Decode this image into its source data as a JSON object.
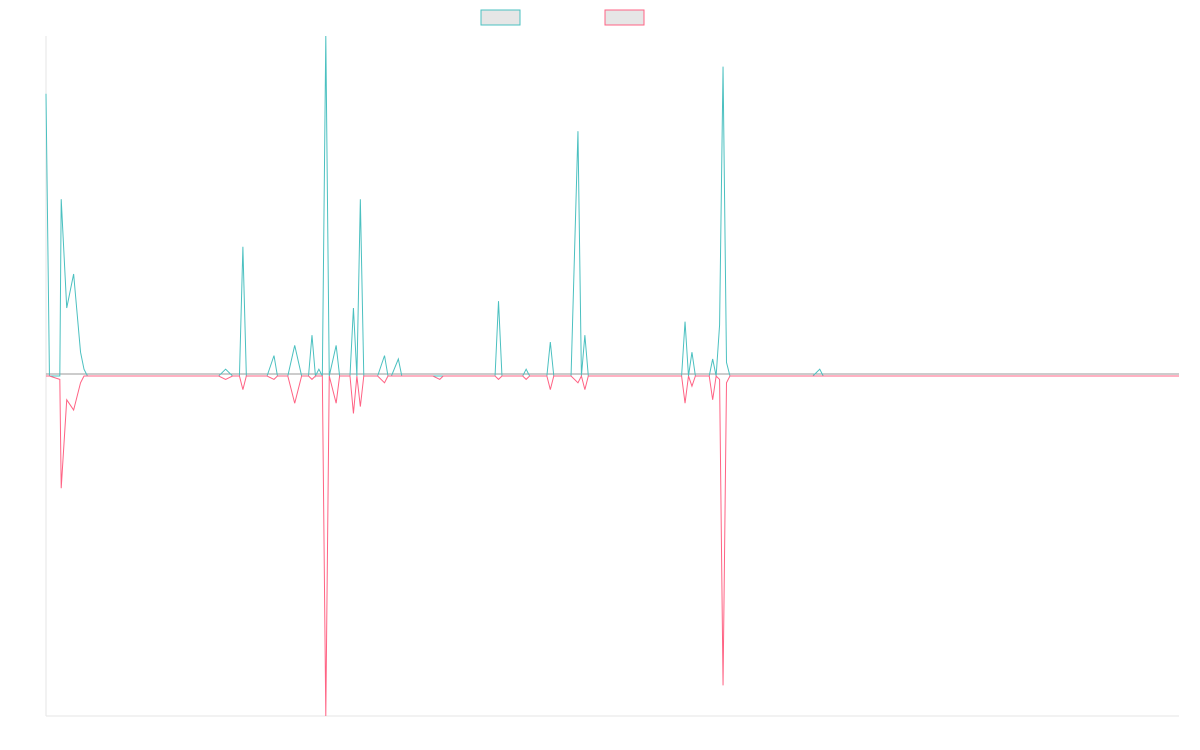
{
  "chart_data": {
    "type": "line",
    "title": "",
    "xlabel": "",
    "ylabel": "",
    "grid": false,
    "legend_position": "top-center",
    "xlim": [
      0,
      164
    ],
    "ylim": [
      -1,
      1
    ],
    "series": [
      {
        "name": "",
        "color": "#4bc0c0",
        "legend_fill": "#e6e6e6",
        "points": [
          [
            0,
            0.83
          ],
          [
            0.5,
            0
          ],
          [
            2,
            0
          ],
          [
            2.2,
            0.52
          ],
          [
            3,
            0.2
          ],
          [
            4,
            0.3
          ],
          [
            5,
            0.07
          ],
          [
            5.5,
            0.02
          ],
          [
            6,
            0
          ],
          [
            8,
            0
          ],
          [
            21.5,
            0
          ],
          [
            22,
            0
          ],
          [
            23,
            0
          ],
          [
            25,
            0
          ],
          [
            26,
            0.02
          ],
          [
            27,
            0
          ],
          [
            28,
            0
          ],
          [
            28.5,
            0.38
          ],
          [
            29,
            0
          ],
          [
            32,
            0
          ],
          [
            33,
            0.06
          ],
          [
            33.5,
            0
          ],
          [
            35,
            0
          ],
          [
            36,
            0.09
          ],
          [
            37,
            0
          ],
          [
            38,
            0
          ],
          [
            38.5,
            0.12
          ],
          [
            39,
            0
          ],
          [
            39.5,
            0.02
          ],
          [
            40,
            0
          ],
          [
            40.5,
            1.0
          ],
          [
            41,
            0
          ],
          [
            42,
            0.09
          ],
          [
            42.5,
            0
          ],
          [
            44,
            0
          ],
          [
            44.5,
            0.2
          ],
          [
            45,
            0
          ],
          [
            45.5,
            0.52
          ],
          [
            46,
            0
          ],
          [
            48,
            0
          ],
          [
            49,
            0.06
          ],
          [
            49.5,
            0
          ],
          [
            50,
            0
          ],
          [
            51,
            0.05
          ],
          [
            51.5,
            0
          ],
          [
            56,
            0
          ],
          [
            57,
            0
          ],
          [
            57.5,
            0
          ],
          [
            65,
            0
          ],
          [
            65.5,
            0.22
          ],
          [
            66,
            0
          ],
          [
            69,
            0
          ],
          [
            69.5,
            0.02
          ],
          [
            70,
            0
          ],
          [
            72.5,
            0
          ],
          [
            73,
            0.1
          ],
          [
            73.5,
            0
          ],
          [
            76,
            0
          ],
          [
            77,
            0.72
          ],
          [
            77.5,
            0
          ],
          [
            78,
            0.12
          ],
          [
            78.5,
            0
          ],
          [
            92,
            0
          ],
          [
            92.5,
            0.16
          ],
          [
            93,
            0
          ],
          [
            93.5,
            0.07
          ],
          [
            94,
            0
          ],
          [
            96,
            0
          ],
          [
            96.5,
            0.05
          ],
          [
            97,
            0
          ],
          [
            97.5,
            0.15
          ],
          [
            98,
            0.91
          ],
          [
            98.5,
            0.04
          ],
          [
            99,
            0
          ],
          [
            111,
            0
          ],
          [
            112,
            0.02
          ],
          [
            112.5,
            0
          ],
          [
            164,
            0
          ]
        ]
      },
      {
        "name": "",
        "color": "#ff6384",
        "legend_fill": "#e6e6e6",
        "points": [
          [
            0,
            0
          ],
          [
            0.5,
            0
          ],
          [
            2,
            -0.01
          ],
          [
            2.2,
            -0.33
          ],
          [
            3,
            -0.07
          ],
          [
            4,
            -0.1
          ],
          [
            5,
            -0.02
          ],
          [
            5.5,
            0
          ],
          [
            6,
            0
          ],
          [
            21.5,
            0
          ],
          [
            22,
            0
          ],
          [
            23,
            0
          ],
          [
            25,
            0
          ],
          [
            26,
            -0.01
          ],
          [
            27,
            0
          ],
          [
            28,
            0
          ],
          [
            28.5,
            -0.04
          ],
          [
            29,
            0
          ],
          [
            32,
            0
          ],
          [
            33,
            -0.01
          ],
          [
            33.5,
            0
          ],
          [
            35,
            0
          ],
          [
            36,
            -0.08
          ],
          [
            37,
            0
          ],
          [
            38,
            0
          ],
          [
            38.5,
            -0.01
          ],
          [
            39,
            0
          ],
          [
            39.5,
            0
          ],
          [
            40,
            0
          ],
          [
            40.5,
            -1.0
          ],
          [
            41,
            0
          ],
          [
            42,
            -0.08
          ],
          [
            42.5,
            0
          ],
          [
            44,
            0
          ],
          [
            44.5,
            -0.11
          ],
          [
            45,
            0
          ],
          [
            45.5,
            -0.09
          ],
          [
            46,
            0
          ],
          [
            48,
            0
          ],
          [
            49,
            -0.02
          ],
          [
            49.5,
            0
          ],
          [
            50,
            0
          ],
          [
            51,
            0
          ],
          [
            51.5,
            0
          ],
          [
            56,
            0
          ],
          [
            57,
            -0.01
          ],
          [
            57.5,
            0
          ],
          [
            65,
            0
          ],
          [
            65.5,
            -0.01
          ],
          [
            66,
            0
          ],
          [
            69,
            0
          ],
          [
            69.5,
            -0.01
          ],
          [
            70,
            0
          ],
          [
            72.5,
            0
          ],
          [
            73,
            -0.04
          ],
          [
            73.5,
            0
          ],
          [
            76,
            0
          ],
          [
            77,
            -0.02
          ],
          [
            77.5,
            0
          ],
          [
            78,
            -0.04
          ],
          [
            78.5,
            0
          ],
          [
            92,
            0
          ],
          [
            92.5,
            -0.08
          ],
          [
            93,
            0
          ],
          [
            93.5,
            -0.03
          ],
          [
            94,
            0
          ],
          [
            96,
            0
          ],
          [
            96.5,
            -0.07
          ],
          [
            97,
            0
          ],
          [
            97.5,
            -0.01
          ],
          [
            98,
            -0.91
          ],
          [
            98.5,
            -0.02
          ],
          [
            99,
            0
          ],
          [
            111,
            0
          ],
          [
            112,
            0
          ],
          [
            112.5,
            0
          ],
          [
            164,
            0
          ]
        ]
      }
    ]
  }
}
